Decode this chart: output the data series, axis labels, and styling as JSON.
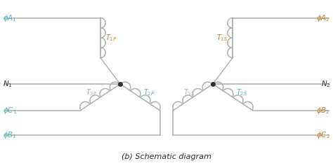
{
  "title": "(b) Schematic diagram",
  "title_fontsize": 8,
  "background_color": "#ffffff",
  "line_color": "#b0b0b0",
  "cyan_color": "#4db8c0",
  "brown_color": "#c08030",
  "black_color": "#303030",
  "node_color": "#303030",
  "label_fontsize": 7.5,
  "t_label_fontsize": 7.0
}
